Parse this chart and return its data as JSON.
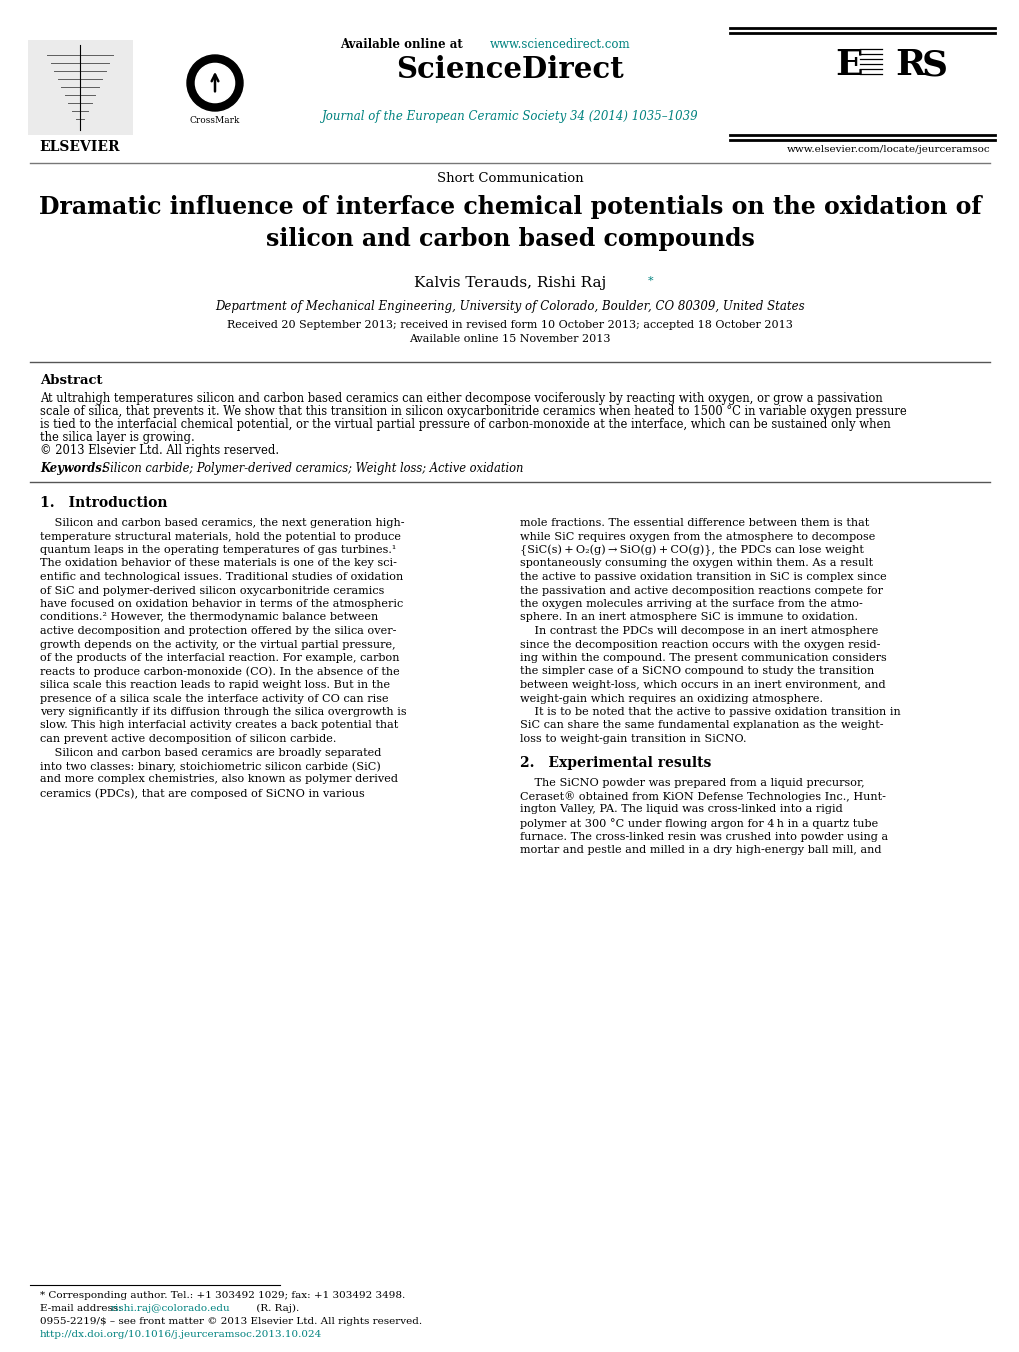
{
  "bg_color": "#ffffff",
  "teal": "#00827F",
  "black": "#000000",
  "gray": "#555555",
  "title_line1": "Dramatic influence of interface chemical potentials on the oxidation of",
  "title_line2": "silicon and carbon based compounds",
  "short_comm": "Short Communication",
  "authors_main": "Kalvis Terauds, Rishi Raj",
  "authors_star": "*",
  "affiliation": "Department of Mechanical Engineering, University of Colorado, Boulder, CO 80309, United States",
  "received": "Received 20 September 2013; received in revised form 10 October 2013; accepted 18 October 2013",
  "available": "Available online 15 November 2013",
  "avail_prefix": "Available online at ",
  "sd_url": "www.sciencedirect.com",
  "sd_title": "ScienceDirect",
  "journal_line": "Journal of the European Ceramic Society 34 (2014) 1035–1039",
  "elsevier_url": "www.elsevier.com/locate/jeurceramsoc",
  "elsevier_word": "ELSEVIER",
  "abstract_title": "Abstract",
  "abstract_body": "At ultrahigh temperatures silicon and carbon based ceramics can either decompose vociferously by reacting with oxygen, or grow a passivation\nscale of silica, that prevents it. We show that this transition in silicon oxycarbonitride ceramics when heated to 1500 °C in variable oxygen pressure\nis tied to the interfacial chemical potential, or the virtual partial pressure of carbon-monoxide at the interface, which can be sustained only when\nthe silica layer is growing.\n© 2013 Elsevier Ltd. All rights reserved.",
  "keywords_label": "Keywords:",
  "keywords_text": "  Silicon carbide; Polymer-derived ceramics; Weight loss; Active oxidation",
  "intro_title": "1. Introduction",
  "intro_left": [
    "    Silicon and carbon based ceramics, the next generation high-",
    "temperature structural materials, hold the potential to produce",
    "quantum leaps in the operating temperatures of gas turbines.¹",
    "The oxidation behavior of these materials is one of the key sci-",
    "entific and technological issues. Traditional studies of oxidation",
    "of SiC and polymer-derived silicon oxycarbonitride ceramics",
    "have focused on oxidation behavior in terms of the atmospheric",
    "conditions.² However, the thermodynamic balance between",
    "active decomposition and protection offered by the silica over-",
    "growth depends on the activity, or the virtual partial pressure,",
    "of the products of the interfacial reaction. For example, carbon",
    "reacts to produce carbon-monoxide (CO). In the absence of the",
    "silica scale this reaction leads to rapid weight loss. But in the",
    "presence of a silica scale the interface activity of CO can rise",
    "very significantly if its diffusion through the silica overgrowth is",
    "slow. This high interfacial activity creates a back potential that",
    "can prevent active decomposition of silicon carbide.",
    "    Silicon and carbon based ceramics are broadly separated",
    "into two classes: binary, stoichiometric silicon carbide (SiC)",
    "and more complex chemistries, also known as polymer derived",
    "ceramics (PDCs), that are composed of SiCNO in various"
  ],
  "intro_right": [
    "mole fractions. The essential difference between them is that",
    "while SiC requires oxygen from the atmosphere to decompose",
    "{SiC(s) + O₂(g) → SiO(g) + CO(g)}, the PDCs can lose weight",
    "spontaneously consuming the oxygen within them. As a result",
    "the active to passive oxidation transition in SiC is complex since",
    "the passivation and active decomposition reactions compete for",
    "the oxygen molecules arriving at the surface from the atmo-",
    "sphere. In an inert atmosphere SiC is immune to oxidation.",
    "    In contrast the PDCs will decompose in an inert atmosphere",
    "since the decomposition reaction occurs with the oxygen resid-",
    "ing within the compound. The present communication considers",
    "the simpler case of a SiCNO compound to study the transition",
    "between weight-loss, which occurs in an inert environment, and",
    "weight-gain which requires an oxidizing atmosphere.",
    "    It is to be noted that the active to passive oxidation transition in",
    "SiC can share the same fundamental explanation as the weight-",
    "loss to weight-gain transition in SiCNO."
  ],
  "exp_title": "2. Experimental results",
  "exp_lines": [
    "    The SiCNO powder was prepared from a liquid precursor,",
    "Ceraset® obtained from KiON Defense Technologies Inc., Hunt-",
    "ington Valley, PA. The liquid was cross-linked into a rigid",
    "polymer at 300 °C under flowing argon for 4 h in a quartz tube",
    "furnace. The cross-linked resin was crushed into powder using a",
    "mortar and pestle and milled in a dry high-energy ball mill, and"
  ],
  "fn_line": "―",
  "fn_star": "* Corresponding author. Tel.: +1 303492 1029; fax: +1 303492 3498.",
  "fn_email_pre": "E-mail address: ",
  "fn_email": "rishi.raj@colorado.edu",
  "fn_email_post": " (R. Raj).",
  "fn_issn": "0955-2219/$ – see front matter © 2013 Elsevier Ltd. All rights reserved.",
  "fn_doi": "http://dx.doi.org/10.1016/j.jeurceramsoc.2013.10.024"
}
